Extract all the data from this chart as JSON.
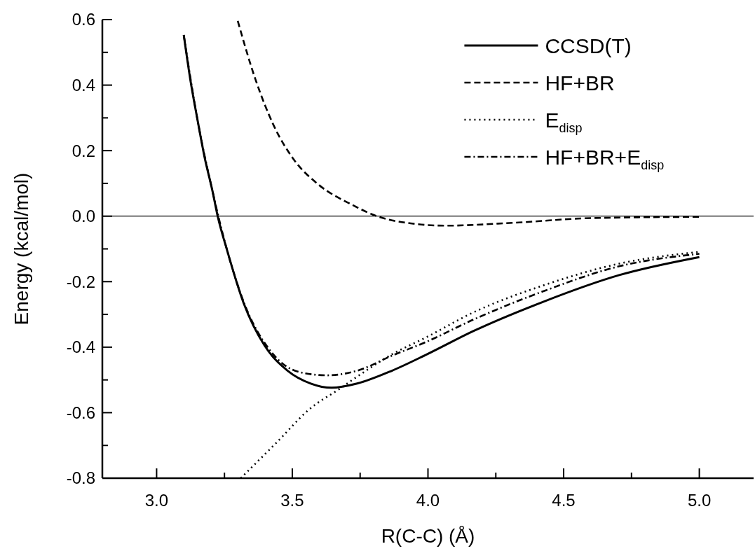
{
  "chart_data": {
    "type": "line",
    "xlabel": "R(C-C) (Å)",
    "ylabel": "Energy (kcal/mol)",
    "xlim": [
      2.8,
      5.2
    ],
    "ylim": [
      -0.8,
      0.6
    ],
    "xticks": [
      {
        "value": 3.0,
        "label": "3.0"
      },
      {
        "value": 3.25,
        "label": null
      },
      {
        "value": 3.5,
        "label": "3.5"
      },
      {
        "value": 3.75,
        "label": null
      },
      {
        "value": 4.0,
        "label": "4.0"
      },
      {
        "value": 4.25,
        "label": null
      },
      {
        "value": 4.5,
        "label": "4.5"
      },
      {
        "value": 4.75,
        "label": null
      },
      {
        "value": 5.0,
        "label": "5.0"
      }
    ],
    "yticks": [
      {
        "value": -0.8,
        "label": "-0.8"
      },
      {
        "value": -0.7,
        "label": null
      },
      {
        "value": -0.6,
        "label": "-0.6"
      },
      {
        "value": -0.5,
        "label": null
      },
      {
        "value": -0.4,
        "label": "-0.4"
      },
      {
        "value": -0.3,
        "label": null
      },
      {
        "value": -0.2,
        "label": "-0.2"
      },
      {
        "value": -0.1,
        "label": null
      },
      {
        "value": 0.0,
        "label": "0.0"
      },
      {
        "value": 0.1,
        "label": null
      },
      {
        "value": 0.2,
        "label": "0.2"
      },
      {
        "value": 0.3,
        "label": null
      },
      {
        "value": 0.4,
        "label": "0.4"
      },
      {
        "value": 0.5,
        "label": null
      },
      {
        "value": 0.6,
        "label": "0.6"
      }
    ],
    "grid": false,
    "legend": "top right",
    "ref_lines": [
      {
        "axis": "y",
        "value": 0,
        "color": "#000000",
        "line_style": "solid"
      }
    ],
    "series": [
      {
        "name": "CCSD(T)",
        "color": "#000000",
        "line_style": "solid",
        "x": [
          3.1,
          3.124,
          3.15,
          3.176,
          3.206,
          3.225,
          3.26,
          3.321,
          3.397,
          3.483,
          3.568,
          3.645,
          3.739,
          3.867,
          3.996,
          4.167,
          4.423,
          4.705,
          5.0
        ],
        "values": [
          0.553,
          0.418,
          0.297,
          0.183,
          0.076,
          0.0,
          -0.105,
          -0.266,
          -0.394,
          -0.472,
          -0.511,
          -0.524,
          -0.511,
          -0.472,
          -0.422,
          -0.351,
          -0.262,
          -0.18,
          -0.125
        ]
      },
      {
        "name": "HF+BR",
        "color": "#000000",
        "line_style": "dashed",
        "x": [
          3.299,
          3.364,
          3.432,
          3.509,
          3.594,
          3.722,
          3.808,
          3.936,
          4.064,
          4.321,
          4.6,
          5.0
        ],
        "values": [
          0.596,
          0.418,
          0.276,
          0.169,
          0.098,
          0.034,
          0.001,
          -0.022,
          -0.029,
          -0.02,
          -0.006,
          -0.002
        ]
      },
      {
        "name": "E$_{disp}$",
        "color": "#000000",
        "line_style": "dotted",
        "x": [
          3.31,
          3.44,
          3.568,
          3.671,
          3.739,
          3.867,
          3.996,
          4.167,
          4.423,
          4.705,
          5.0
        ],
        "values": [
          -0.8,
          -0.693,
          -0.586,
          -0.529,
          -0.49,
          -0.422,
          -0.369,
          -0.294,
          -0.212,
          -0.145,
          -0.109
        ]
      },
      {
        "name": "HF+BR+E$_{disp}$",
        "color": "#000000",
        "line_style": "dashdot",
        "x": [
          3.1,
          3.15,
          3.206,
          3.26,
          3.321,
          3.423,
          3.526,
          3.628,
          3.739,
          3.867,
          3.996,
          4.167,
          4.423,
          4.705,
          5.0
        ],
        "values": [
          0.553,
          0.297,
          0.076,
          -0.105,
          -0.262,
          -0.415,
          -0.476,
          -0.486,
          -0.472,
          -0.426,
          -0.383,
          -0.316,
          -0.23,
          -0.153,
          -0.115
        ]
      }
    ]
  }
}
